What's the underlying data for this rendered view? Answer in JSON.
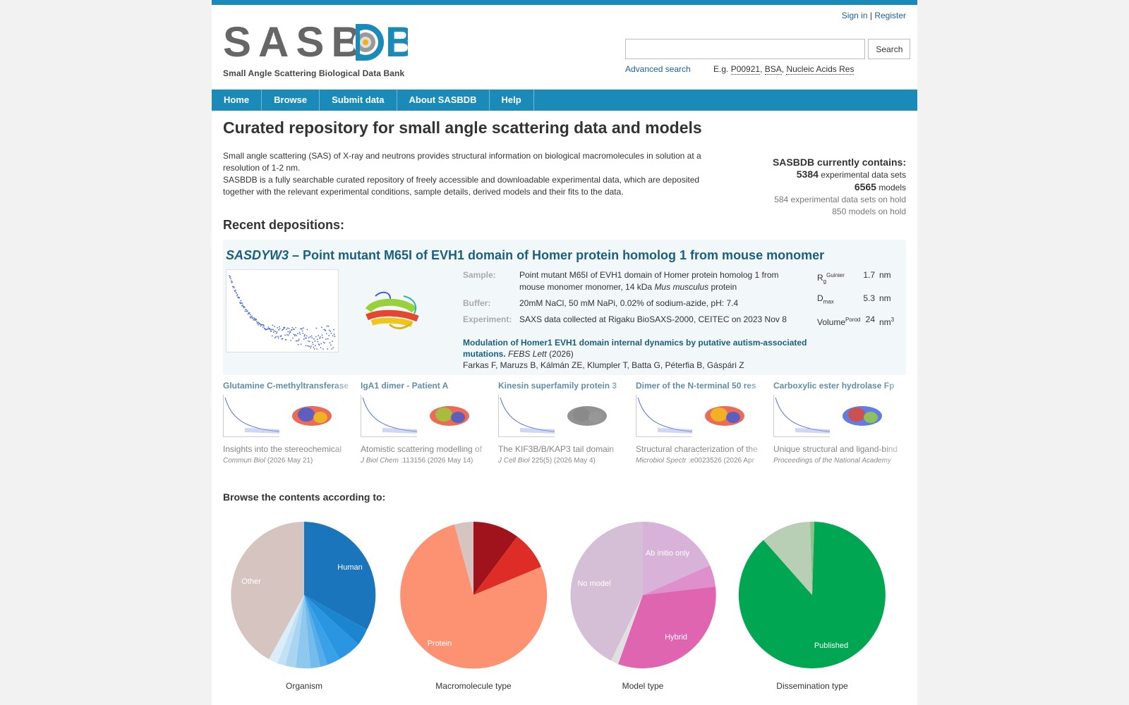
{
  "header": {
    "sign_in": "Sign in",
    "separator": "|",
    "register": "Register",
    "logo_text": "SASBDB",
    "logo_subtitle": "Small Angle Scattering Biological Data Bank",
    "search_placeholder": "",
    "search_button": "Search",
    "advanced_search": "Advanced search",
    "eg_label": "E.g.",
    "examples": [
      "P00921",
      "BSA",
      "Nucleic Acids Res"
    ]
  },
  "nav": [
    "Home",
    "Browse",
    "Submit data",
    "About SASBDB",
    "Help"
  ],
  "page_title": "Curated repository for small angle scattering data and models",
  "intro": {
    "p1": "Small angle scattering (SAS) of X-ray and neutrons provides structural information on biological macromolecules in solution at a resolution of 1-2 nm.",
    "p2": "SASBDB is a fully searchable curated repository of freely accessible and downloadable experimental data, which are deposited together with the relevant experimental conditions, sample details, derived models and their fits to the data."
  },
  "stats": {
    "heading": "SASBDB currently contains:",
    "datasets_count": "5384",
    "datasets_label": "experimental data sets",
    "models_count": "6565",
    "models_label": "models",
    "datasets_hold": "584 experimental data sets on hold",
    "models_hold": "850 models on hold"
  },
  "recent_heading": "Recent depositions:",
  "featured": {
    "code": "SASDYW3",
    "title": "– Point mutant M65I of EVH1 domain of Homer protein homolog 1 from mouse monomer",
    "sample_label": "Sample:",
    "sample_text": "Point mutant M65I of EVH1 domain of Homer protein homolog 1 from mouse monomer monomer, 14 kDa",
    "sample_species": "Mus musculus",
    "sample_suffix": "protein",
    "buffer_label": "Buffer:",
    "buffer_text": "20mM NaCl, 50 mM NaPi, 0.02% of sodium-azide, pH: 7.4",
    "experiment_label": "Experiment:",
    "experiment_text": "SAXS data collected at Rigaku BioSAXS-2000, CEITEC on 2023 Nov 8",
    "pub_title": "Modulation of Homer1 EVH1 domain internal dynamics by putative autism-associated mutations.",
    "pub_journal": "FEBS Lett",
    "pub_year": "(2026)",
    "pub_authors": "Farkas F, Maruzs B, Kálmán ZE, Klumpler T, Batta G, Péterfia B, Gáspári Z",
    "rg_label": "R",
    "rg_sub": "g",
    "rg_sup": "Guinier",
    "rg_value": "1.7",
    "rg_unit": "nm",
    "dmax_label": "D",
    "dmax_sub": "max",
    "dmax_value": "5.3",
    "dmax_unit": "nm",
    "vol_label": "Volume",
    "vol_sup": "Porod",
    "vol_value": "24",
    "vol_unit": "nm",
    "vol_unit_sup": "3"
  },
  "cards": [
    {
      "title": "Glutamine C-methyltransferase",
      "desc": "Insights into the stereochemical",
      "journal": "Commun Biol",
      "cite": "(2026 May 21)"
    },
    {
      "title": "IgA1 dimer - Patient A",
      "desc": "Atomistic scattering modelling of",
      "journal": "J Biol Chem",
      "cite": ":113156 (2026 May 14)"
    },
    {
      "title": "Kinesin superfamily protein 3",
      "desc": "The KIF3B/B/KAP3 tail domain",
      "journal": "J Cell Biol",
      "cite": "225(5) (2026 May 4)"
    },
    {
      "title": "Dimer of the N-terminal 50 res",
      "desc": "Structural characterization of the",
      "journal": "Microbiol Spectr",
      "cite": ":e0023526 (2026 Apr"
    },
    {
      "title": "Carboxylic ester hydrolase Fp",
      "desc": "Unique structural and ligand-bind",
      "journal": "Proceedings of the National Academy",
      "cite": ""
    }
  ],
  "browse_heading": "Browse the contents according to:",
  "pies": [
    {
      "caption": "Organism",
      "labels": [
        "Human",
        "Other"
      ]
    },
    {
      "caption": "Macromolecule type",
      "labels": [
        "Protein"
      ]
    },
    {
      "caption": "Model type",
      "labels": [
        "Ab initio only",
        "No model",
        "Hybrid"
      ]
    },
    {
      "caption": "Dissemination type",
      "labels": [
        "Published"
      ]
    }
  ],
  "colors": {
    "brand": "#1a8bb9",
    "title_blue": "#1a5f7e",
    "link": "#1a5f9e"
  }
}
